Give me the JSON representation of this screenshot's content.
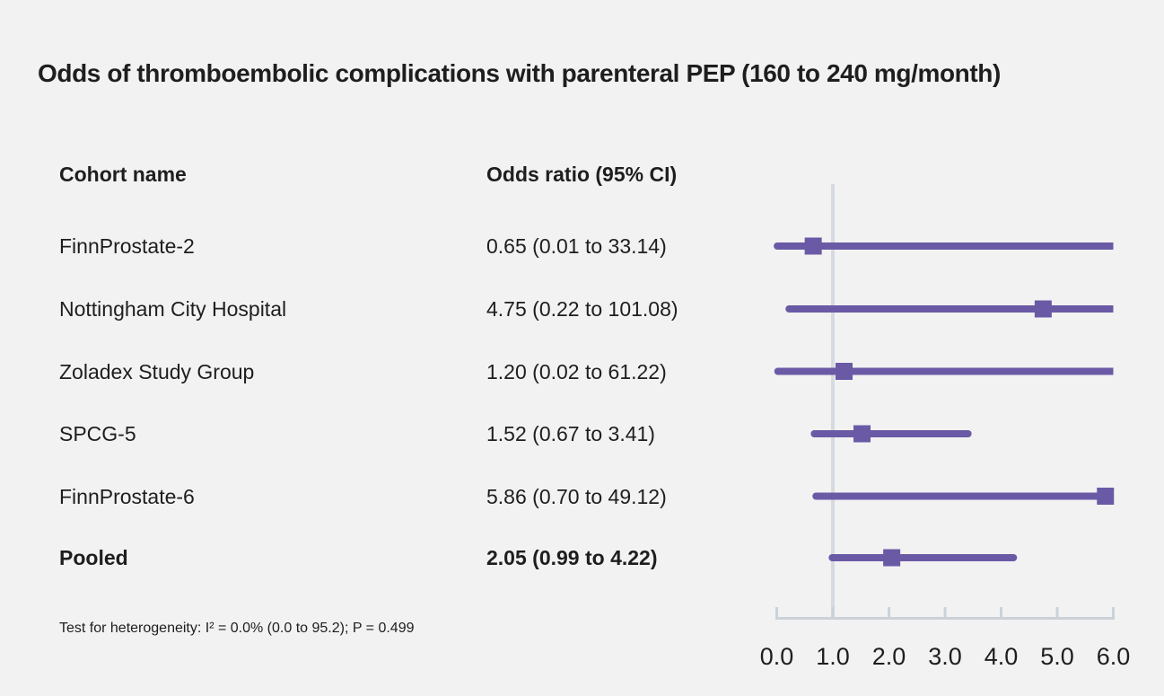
{
  "title": "Odds of thromboembolic complications with parenteral PEP (160 to 240 mg/month)",
  "table": {
    "cohort_header": "Cohort name",
    "or_header": "Odds ratio (95% CI)"
  },
  "footnote": "Test for heterogeneity: I² = 0.0% (0.0 to 95.2); P = 0.499",
  "chart_data": {
    "type": "forest",
    "title": "Odds of thromboembolic complications with parenteral PEP (160 to 240 mg/month)",
    "axis": {
      "min": 0.0,
      "max": 6.0,
      "ticks": [
        0.0,
        1.0,
        2.0,
        3.0,
        4.0,
        5.0,
        6.0
      ],
      "tick_labels": [
        "0.0",
        "1.0",
        "2.0",
        "3.0",
        "4.0",
        "5.0",
        "6.0"
      ],
      "reference_line": 1.0
    },
    "rows": [
      {
        "cohort": "FinnProstate-2",
        "estimate": 0.65,
        "ci_low": 0.01,
        "ci_high": 33.14,
        "label": "0.65 (0.01 to 33.14)",
        "bold": false
      },
      {
        "cohort": "Nottingham City Hospital",
        "estimate": 4.75,
        "ci_low": 0.22,
        "ci_high": 101.08,
        "label": "4.75 (0.22 to 101.08)",
        "bold": false
      },
      {
        "cohort": "Zoladex Study Group",
        "estimate": 1.2,
        "ci_low": 0.02,
        "ci_high": 61.22,
        "label": "1.20 (0.02 to 61.22)",
        "bold": false
      },
      {
        "cohort": "SPCG-5",
        "estimate": 1.52,
        "ci_low": 0.67,
        "ci_high": 3.41,
        "label": "1.52 (0.67 to 3.41)",
        "bold": false
      },
      {
        "cohort": "FinnProstate-6",
        "estimate": 5.86,
        "ci_low": 0.7,
        "ci_high": 49.12,
        "label": "5.86 (0.70 to 49.12)",
        "bold": false
      },
      {
        "cohort": "Pooled",
        "estimate": 2.05,
        "ci_low": 0.99,
        "ci_high": 4.22,
        "label": "2.05 (0.99 to 4.22)",
        "bold": true
      }
    ],
    "colors": {
      "marker": "#6a5aa6",
      "ci_line": "#6a5aa6",
      "reference_line": "#d6dae0",
      "axis_line": "#ccd2d9",
      "text": "#1e1e1e",
      "background": "#f2f2f2"
    }
  }
}
